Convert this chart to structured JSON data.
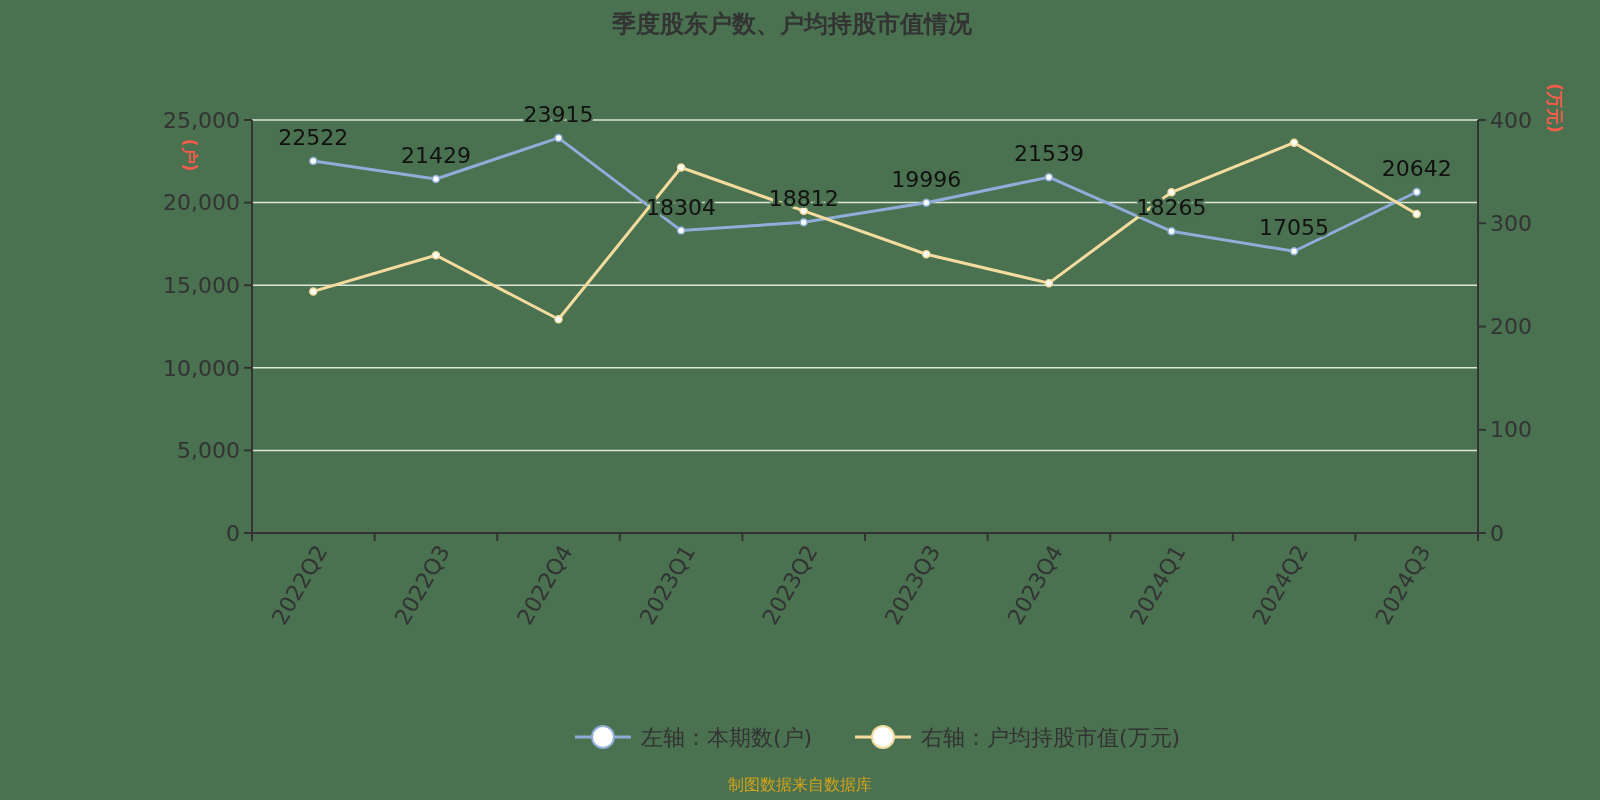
{
  "chart_data": {
    "type": "line",
    "title": "季度股东户数、户均持股市值情况",
    "ylabel": "(户)",
    "y2label": "(万元)",
    "categories": [
      "2022Q2",
      "2022Q3",
      "2022Q4",
      "2023Q1",
      "2023Q2",
      "2023Q3",
      "2023Q4",
      "2024Q1",
      "2024Q2",
      "2024Q3"
    ],
    "series": [
      {
        "name": "左轴：本期数(户)",
        "color": "#8fadd8",
        "values": [
          22522,
          21429,
          23915,
          18304,
          18812,
          19996,
          21539,
          18265,
          17055,
          20642
        ],
        "value_labels": [
          "22522",
          "21429",
          "23915",
          "18304",
          "18812",
          "19996",
          "21539",
          "18265",
          "17055",
          "20642"
        ]
      },
      {
        "name": "右轴：户均持股市值(万元)",
        "color": "#f5dc9e",
        "axis": "y2",
        "values": [
          234,
          269,
          207,
          354,
          312,
          270,
          242,
          330,
          378,
          309
        ]
      }
    ],
    "ylim": [
      0,
      25000
    ],
    "yticks": [
      {
        "value": 0,
        "label": "0"
      },
      {
        "value": 5000,
        "label": "5,000"
      },
      {
        "value": 10000,
        "label": "10,000"
      },
      {
        "value": 15000,
        "label": "15,000"
      },
      {
        "value": 20000,
        "label": "20,000"
      },
      {
        "value": 25000,
        "label": "25,000"
      }
    ],
    "y2lim": [
      0,
      400
    ],
    "y2ticks": [
      0,
      100,
      200,
      300,
      400
    ],
    "grid": "y",
    "legend": "bottom",
    "marker": "circle",
    "line_style": "solid",
    "annotations": [
      "制图数据来自数据库"
    ]
  }
}
